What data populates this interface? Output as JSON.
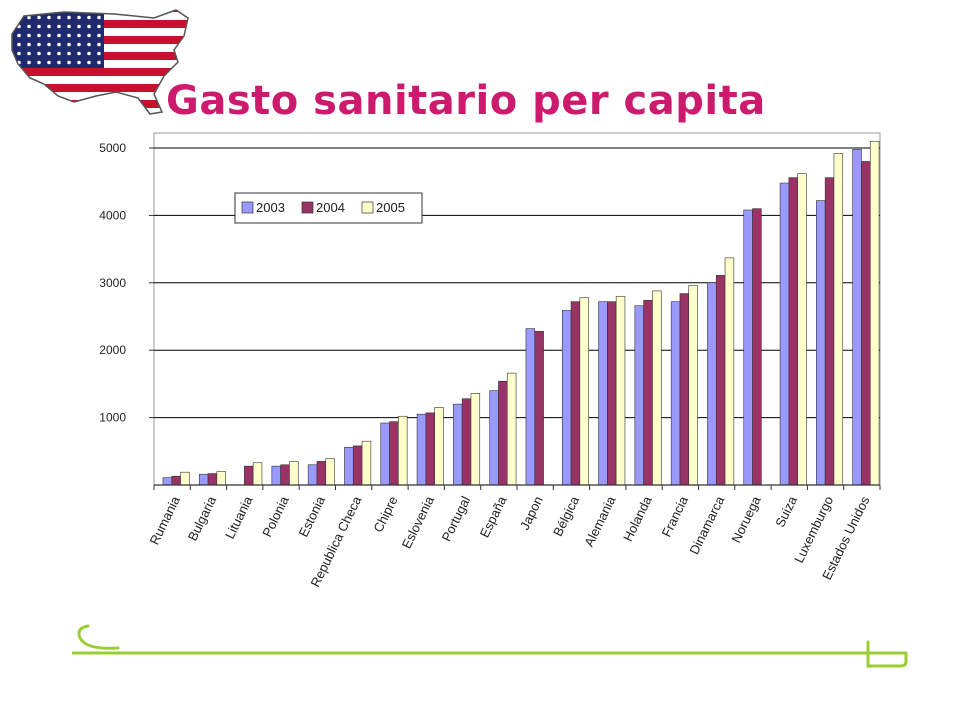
{
  "slide": {
    "title": "Gasto sanitario per capita",
    "logo_icon": "usa-flag-map-icon"
  },
  "colors": {
    "title": "#cc1a6e",
    "accent_green": "#9acd32"
  },
  "chart_data": {
    "type": "bar",
    "categories": [
      "Rumania",
      "Bulgaria",
      "Lituania",
      "Polonia",
      "Estonia",
      "Republica Checa",
      "Chipre",
      "Eslovenia",
      "Portugal",
      "España",
      "Japon",
      "Bélgica",
      "Alemania",
      "Holanda",
      "Francia",
      "Dinamarca",
      "Noruega",
      "Suiza",
      "Luxemburgo",
      "Estados Unidos"
    ],
    "series": [
      {
        "name": "2003",
        "color": "#9999ff",
        "values": [
          110,
          160,
          null,
          280,
          300,
          560,
          920,
          1050,
          1200,
          1400,
          2320,
          2590,
          2720,
          2660,
          2720,
          3000,
          4080,
          4480,
          4220,
          4980
        ]
      },
      {
        "name": "2004",
        "color": "#993366",
        "values": [
          130,
          170,
          280,
          300,
          350,
          580,
          940,
          1070,
          1280,
          1540,
          2280,
          2720,
          2720,
          2740,
          2840,
          3110,
          4100,
          4560,
          4560,
          4800
        ]
      },
      {
        "name": "2005",
        "color": "#ffffcc",
        "values": [
          190,
          200,
          330,
          350,
          390,
          650,
          1020,
          1150,
          1360,
          1660,
          null,
          2780,
          2800,
          2880,
          2960,
          3370,
          null,
          4620,
          4920,
          5100
        ]
      }
    ],
    "y_ticks": [
      1000,
      2000,
      3000,
      4000,
      5000
    ],
    "ylim": [
      0,
      5150
    ],
    "grid": true,
    "legend_position": "top-left"
  }
}
